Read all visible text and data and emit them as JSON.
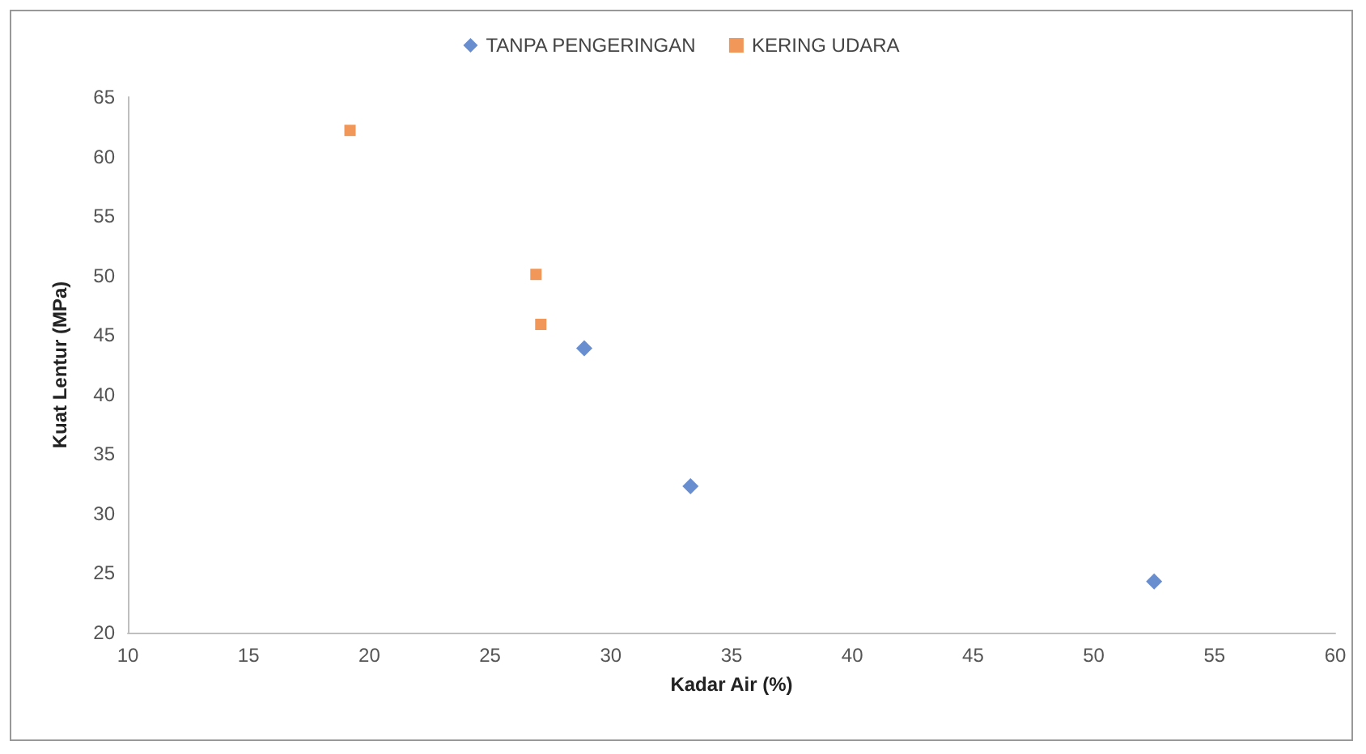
{
  "chart_data": {
    "type": "scatter",
    "xlabel": "Kadar Air (%)",
    "ylabel": "Kuat Lentur (MPa)",
    "xlim": [
      10,
      60
    ],
    "xticks": [
      10,
      15,
      20,
      25,
      30,
      35,
      40,
      45,
      50,
      55,
      60
    ],
    "ylim": [
      20,
      65
    ],
    "yticks": [
      20,
      25,
      30,
      35,
      40,
      45,
      50,
      55,
      60,
      65
    ],
    "grid": false,
    "legend": "top",
    "series": [
      {
        "name": "TANPA PENGERINGAN",
        "color": "#4472c4",
        "marker": "diamond",
        "x": [
          28.9,
          33.3,
          52.5
        ],
        "values": [
          43.9,
          32.3,
          24.3
        ]
      },
      {
        "name": "KERING UDARA",
        "color": "#ed7d31",
        "marker": "square",
        "x": [
          19.2,
          26.9,
          27.1
        ],
        "values": [
          62.2,
          50.1,
          45.9
        ]
      }
    ]
  }
}
